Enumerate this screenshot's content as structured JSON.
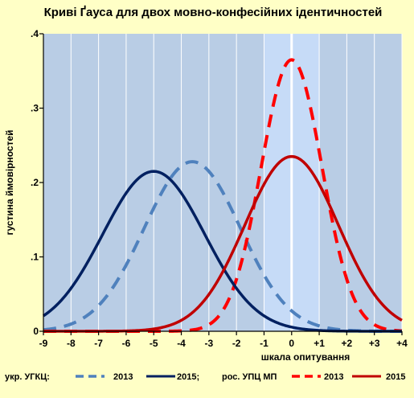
{
  "chart_data": {
    "type": "line",
    "title": "Криві Ґауса для двох мовно-конфесійних  ідентичностей",
    "xlabel": "шкала опитування",
    "ylabel": "густина ймовірностей",
    "xlim": [
      -9,
      4
    ],
    "ylim": [
      0,
      0.4
    ],
    "x_ticks": [
      {
        "value": -9,
        "label": "-9"
      },
      {
        "value": -8,
        "label": "-8"
      },
      {
        "value": -7,
        "label": "-7"
      },
      {
        "value": -6,
        "label": "-6"
      },
      {
        "value": -5,
        "label": "-5"
      },
      {
        "value": -4,
        "label": "-4"
      },
      {
        "value": -3,
        "label": "-3"
      },
      {
        "value": -2,
        "label": "-2"
      },
      {
        "value": -1,
        "label": "-1"
      },
      {
        "value": 0,
        "label": "0"
      },
      {
        "value": 1,
        "label": "+1"
      },
      {
        "value": 2,
        "label": "+2"
      },
      {
        "value": 3,
        "label": "+3"
      },
      {
        "value": 4,
        "label": "+4"
      }
    ],
    "y_ticks": [
      {
        "value": 0,
        "label": "0"
      },
      {
        "value": 0.1,
        "label": ".1"
      },
      {
        "value": 0.2,
        "label": ".2"
      },
      {
        "value": 0.3,
        "label": ".3"
      },
      {
        "value": 0.4,
        "label": ".4"
      }
    ],
    "shaded_band": {
      "x_from": -1,
      "x_to": 1,
      "color": "#C6DBF7"
    },
    "center_line": {
      "x": 0,
      "color": "#FFFFFF"
    },
    "grid": {
      "vertical": true,
      "horizontal": false,
      "color": "#FFFFFF"
    },
    "series": [
      {
        "group": "укр. УГКЦ",
        "year": "2013",
        "mean": -3.6,
        "peak": 0.228,
        "sd": 1.75,
        "color": "#4F81BD",
        "dashed": true
      },
      {
        "group": "укр. УГКЦ",
        "year": "2015",
        "mean": -5.0,
        "peak": 0.215,
        "sd": 1.85,
        "color": "#002060",
        "dashed": false
      },
      {
        "group": "рос. УПЦ МП",
        "year": "2013",
        "mean": 0.0,
        "peak": 0.365,
        "sd": 1.1,
        "color": "#FF0000",
        "dashed": true
      },
      {
        "group": "рос. УПЦ МП",
        "year": "2015",
        "mean": 0.0,
        "peak": 0.235,
        "sd": 1.7,
        "color": "#C00000",
        "dashed": false
      }
    ],
    "legend": {
      "placement": "bottom",
      "groups": [
        {
          "label": "укр. УГКЦ:",
          "items": [
            {
              "label": "2013",
              "series": 0
            },
            {
              "label": "2015;",
              "series": 1
            }
          ]
        },
        {
          "label": "рос. УПЦ МП",
          "items": [
            {
              "label": "2013",
              "series": 2
            },
            {
              "label": "2015",
              "series": 3
            }
          ]
        }
      ]
    }
  }
}
